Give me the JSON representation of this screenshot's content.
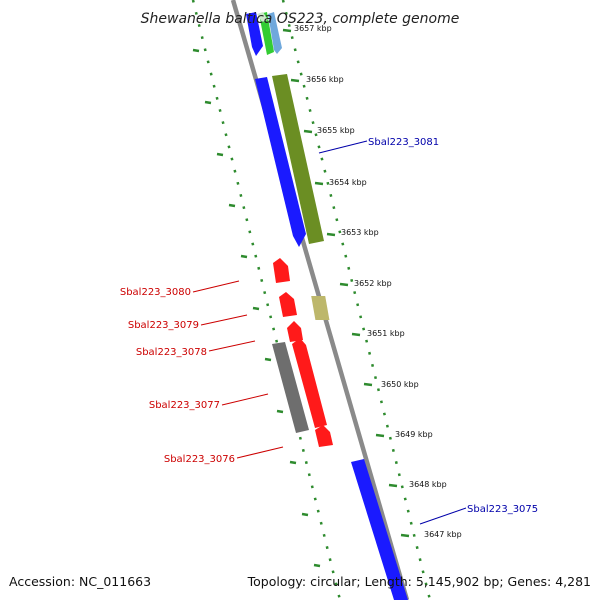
{
  "title": "Shewanella baltica OS223, complete genome",
  "footer": {
    "accession": "Accession: NC_011663",
    "topology": "Topology: circular; Length: 5,145,902 bp; Genes: 4,281"
  },
  "ticks": [
    "3657 kbp",
    "3656 kbp",
    "3655 kbp",
    "3654 kbp",
    "3653 kbp",
    "3652 kbp",
    "3651 kbp",
    "3650 kbp",
    "3649 kbp",
    "3648 kbp",
    "3647 kbp"
  ],
  "gene_labels": {
    "sbal223_3081": "Sbal223_3081",
    "sbal223_3080": "Sbal223_3080",
    "sbal223_3079": "Sbal223_3079",
    "sbal223_3078": "Sbal223_3078",
    "sbal223_3077": "Sbal223_3077",
    "sbal223_3076": "Sbal223_3076",
    "sbal223_3075": "Sbal223_3075"
  },
  "colors": {
    "backbone": "#8a8a8a",
    "forward_gene": "#1a1aff",
    "reverse_gene": "#ff1a1a",
    "olive_feature": "#6b8e23",
    "khaki_feature": "#bdb76b",
    "gray_feature": "#6e6e6e",
    "green_feature": "#33cc33",
    "light_blue_feature": "#6fa8dc",
    "tick_marks": "#2e8b2e",
    "forward_label": "#0000aa",
    "reverse_label": "#cc0000"
  }
}
